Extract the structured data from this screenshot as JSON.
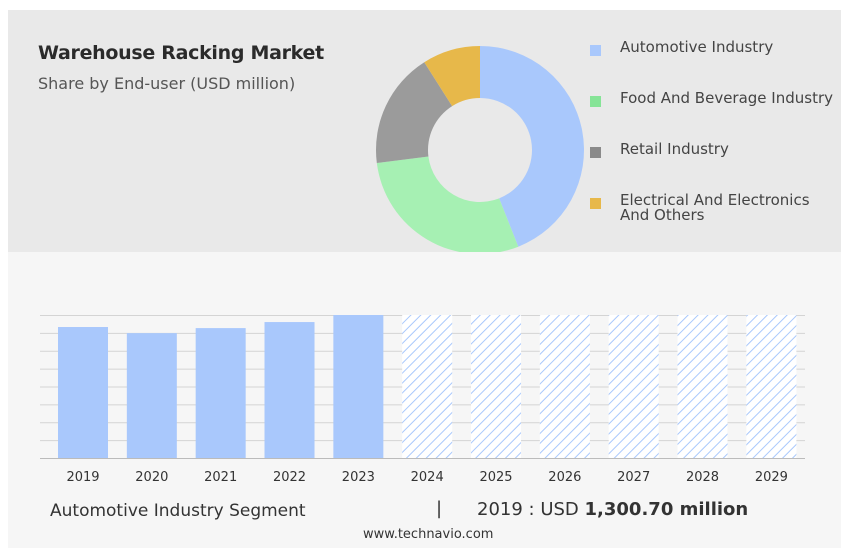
{
  "header": {
    "title": "Warehouse Racking Market",
    "subtitle": "Share by End-user (USD million)"
  },
  "legend": [
    {
      "label": "Automotive Industry",
      "color": "#a9c8fc"
    },
    {
      "label": "Food And Beverage Industry",
      "color": "#86e497"
    },
    {
      "label": "Retail Industry",
      "color": "#8a8a8a"
    },
    {
      "label": "Electrical And Electronics And Others",
      "color": "#e7b84a"
    }
  ],
  "footer": {
    "segment_label": "Automotive Industry Segment",
    "separator": "|",
    "value_prefix": "2019 : USD",
    "value_bold": "1,300.70 million",
    "website": "www.technavio.com"
  },
  "chart_data": [
    {
      "type": "pie",
      "variant": "donut",
      "title": "Share by End-user (USD million)",
      "categories": [
        "Automotive Industry",
        "Food And Beverage Industry",
        "Retail Industry",
        "Electrical And Electronics And Others"
      ],
      "values": [
        44,
        29,
        18,
        9
      ],
      "colors": [
        "#a9c8fc",
        "#a6f0b3",
        "#9b9b9b",
        "#e7b84a"
      ]
    },
    {
      "type": "bar",
      "categories": [
        "2019",
        "2020",
        "2021",
        "2022",
        "2023",
        "2024",
        "2025",
        "2026",
        "2027",
        "2028",
        "2029"
      ],
      "values": [
        1300.7,
        1240,
        1290,
        1350,
        1420,
        null,
        null,
        null,
        null,
        null,
        null
      ],
      "forecast_categories": [
        "2024",
        "2025",
        "2026",
        "2027",
        "2028",
        "2029"
      ],
      "bar_color": "#a9c8fc",
      "forecast_pattern": "diagonal-hatch",
      "ylim": [
        0,
        1420
      ],
      "grid": true
    }
  ]
}
